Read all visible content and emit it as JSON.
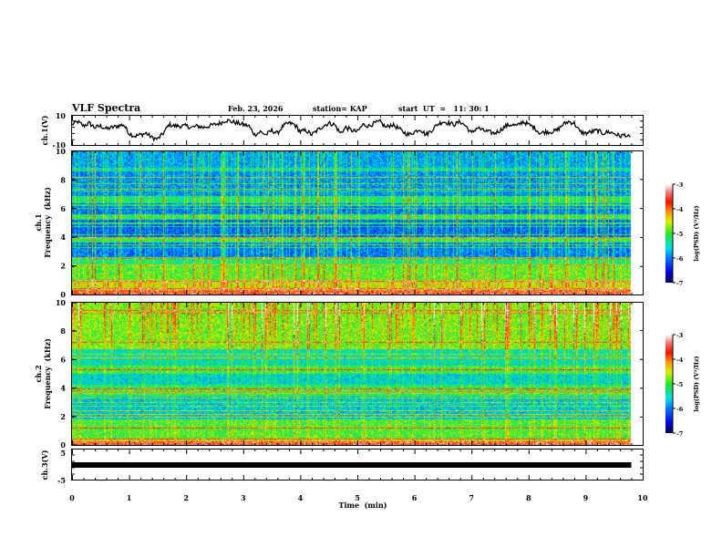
{
  "header": {
    "title": "VLF Spectra",
    "date": "Feb. 23, 2026",
    "station": "station= KAP",
    "start_ut": "start  UT  =   11: 30: 1"
  },
  "chart_data": [
    {
      "type": "line",
      "name": "ch1-waveform",
      "ylabel": "ch.1(V)",
      "ylim": [
        -10,
        10
      ],
      "yticks": [
        "10",
        "-10"
      ],
      "xlim": [
        0,
        10
      ],
      "data_end_min": 9.8,
      "x": [
        0,
        0.1,
        0.2,
        0.3,
        0.4,
        0.5,
        0.6,
        0.7,
        0.8,
        0.9,
        1.0,
        1.1,
        1.2,
        1.3,
        1.4,
        1.5,
        1.6,
        1.7,
        1.8,
        1.9,
        2.0,
        2.1,
        2.2,
        2.3,
        2.4,
        2.5,
        2.6,
        2.7,
        2.8,
        2.9,
        3.0,
        3.1,
        3.2,
        3.3,
        3.4,
        3.5,
        3.6,
        3.7,
        3.8,
        3.9,
        4.0,
        4.1,
        4.2,
        4.3,
        4.4,
        4.5,
        4.6,
        4.7,
        4.8,
        4.9,
        5.0,
        5.1,
        5.2,
        5.3,
        5.4,
        5.5,
        5.6,
        5.7,
        5.8,
        5.9,
        6.0,
        6.1,
        6.2,
        6.3,
        6.4,
        6.5,
        6.6,
        6.7,
        6.8,
        6.9,
        7.0,
        7.1,
        7.2,
        7.3,
        7.4,
        7.5,
        7.6,
        7.7,
        7.8,
        7.9,
        8.0,
        8.1,
        8.2,
        8.3,
        8.4,
        8.5,
        8.6,
        8.7,
        8.8,
        8.9,
        9.0,
        9.1,
        9.2,
        9.3,
        9.4,
        9.5,
        9.6,
        9.7,
        9.8
      ],
      "y": [
        4,
        6,
        3,
        5,
        2,
        3,
        1,
        2,
        3,
        4,
        -2,
        -4,
        -3,
        -2,
        -5,
        -6,
        -2,
        4,
        3,
        3,
        3,
        2,
        3,
        2,
        3,
        4,
        5,
        7,
        6,
        5,
        4,
        3,
        -3,
        -1,
        -3,
        0,
        -2,
        3,
        5,
        4,
        -1,
        0,
        -3,
        0,
        3,
        5,
        4,
        -2,
        2,
        0,
        -1,
        4,
        3,
        5,
        6,
        2,
        4,
        2,
        -1,
        -3,
        -1,
        1,
        -3,
        0,
        4,
        6,
        5,
        4,
        6,
        3,
        -2,
        2,
        0,
        -1,
        -2,
        0,
        3,
        4,
        3,
        6,
        4,
        2,
        -2,
        -1,
        -1,
        0,
        4,
        6,
        5,
        -1,
        -2,
        -1,
        0,
        -2,
        -1,
        -2,
        -4,
        -3,
        -6
      ],
      "series_color": "#000000"
    },
    {
      "type": "heatmap",
      "name": "ch1-spectrogram",
      "ylabel": "ch.1",
      "ylabel2": "Frequency  (kHz)",
      "ylim": [
        0,
        10
      ],
      "yticks": [
        "0",
        "2",
        "4",
        "6",
        "8",
        "10"
      ],
      "xlim": [
        0,
        10
      ],
      "data_end_min": 9.8,
      "colorbar": {
        "label": "log(PSD) (V²/Hz)",
        "range": [
          -7,
          -3
        ],
        "ticks": [
          "-3",
          "-4",
          "-5",
          "-6",
          "-7"
        ]
      },
      "bands": [
        {
          "f_khz": [
            0.0,
            0.3
          ],
          "level": -4.2
        },
        {
          "f_khz": [
            0.3,
            1.0
          ],
          "level": -4.6
        },
        {
          "f_khz": [
            1.0,
            2.0
          ],
          "level": -5.0
        },
        {
          "f_khz": [
            2.0,
            2.6
          ],
          "level": -5.3
        },
        {
          "f_khz": [
            2.6,
            3.6
          ],
          "level": -6.1
        },
        {
          "f_khz": [
            3.6,
            4.0
          ],
          "level": -5.2
        },
        {
          "f_khz": [
            4.0,
            5.2
          ],
          "level": -6.2
        },
        {
          "f_khz": [
            5.2,
            5.6
          ],
          "level": -5.2
        },
        {
          "f_khz": [
            5.6,
            6.4
          ],
          "level": -6.1
        },
        {
          "f_khz": [
            6.4,
            6.9
          ],
          "level": -5.3
        },
        {
          "f_khz": [
            6.9,
            8.6
          ],
          "level": -6.0
        },
        {
          "f_khz": [
            8.6,
            8.9
          ],
          "level": -5.5
        },
        {
          "f_khz": [
            8.9,
            10.0
          ],
          "level": -5.9
        }
      ]
    },
    {
      "type": "heatmap",
      "name": "ch2-spectrogram",
      "ylabel": "ch.2",
      "ylabel2": "Frequency  (kHz)",
      "ylim": [
        0,
        10
      ],
      "yticks": [
        "0",
        "2",
        "4",
        "6",
        "8",
        "10"
      ],
      "xlim": [
        0,
        10
      ],
      "data_end_min": 9.8,
      "colorbar": {
        "label": "log(PSD) (V²/Hz)",
        "range": [
          -7,
          -3
        ],
        "ticks": [
          "-3",
          "-4",
          "-5",
          "-6",
          "-7"
        ]
      },
      "bands": [
        {
          "f_khz": [
            0.0,
            0.4
          ],
          "level": -4.5
        },
        {
          "f_khz": [
            0.4,
            1.8
          ],
          "level": -5.0
        },
        {
          "f_khz": [
            1.8,
            3.4
          ],
          "level": -5.7
        },
        {
          "f_khz": [
            3.4,
            4.2
          ],
          "level": -5.2
        },
        {
          "f_khz": [
            4.2,
            5.0
          ],
          "level": -5.6
        },
        {
          "f_khz": [
            5.0,
            5.6
          ],
          "level": -5.1
        },
        {
          "f_khz": [
            5.6,
            6.8
          ],
          "level": -5.5
        },
        {
          "f_khz": [
            6.8,
            10.0
          ],
          "level": -4.9
        }
      ]
    },
    {
      "type": "line",
      "name": "ch3-waveform",
      "ylabel": "ch.3(V)",
      "ylim": [
        -5,
        5
      ],
      "yticks": [
        "5",
        "-5"
      ],
      "xlim": [
        0,
        10
      ],
      "data_end_min": 9.8,
      "x": [
        0,
        9.8
      ],
      "y": [
        0,
        0
      ],
      "series_color": "#000000"
    }
  ],
  "x_axis": {
    "label": "Time  (min)",
    "ticks": [
      "0",
      "1",
      "2",
      "3",
      "4",
      "5",
      "6",
      "7",
      "8",
      "9",
      "10"
    ]
  }
}
